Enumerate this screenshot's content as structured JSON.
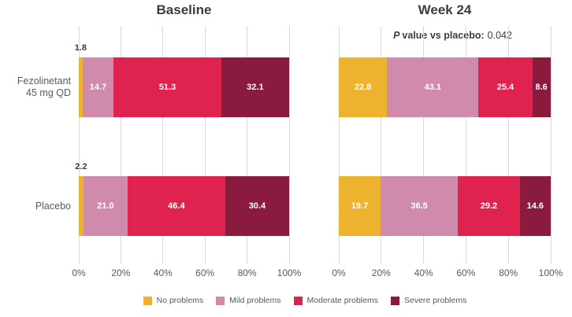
{
  "chart_data": {
    "type": "bar",
    "orientation": "horizontal",
    "stacked": true,
    "unit": "%",
    "xlim": [
      0,
      100
    ],
    "x_ticks": [
      "0%",
      "20%",
      "40%",
      "60%",
      "80%",
      "100%"
    ],
    "grid": "vertical-gridlines",
    "legend_position": "bottom",
    "categories": [
      "No problems",
      "Mild problems",
      "Moderate problems",
      "Severe problems"
    ],
    "colors": [
      "#EDB32E",
      "#CF8AAC",
      "#E0224E",
      "#8A1B3E"
    ],
    "gridline_color": "#d9d9d9",
    "panels": [
      {
        "title": "Baseline",
        "rows": [
          {
            "label_lines": [
              "Fezolinetant",
              "45 mg QD"
            ],
            "values": [
              1.8,
              14.7,
              51.3,
              32.1
            ],
            "labels": [
              "1.8",
              "14.7",
              "51.3",
              "32.1"
            ]
          },
          {
            "label_lines": [
              "Placebo"
            ],
            "values": [
              2.2,
              21.0,
              46.4,
              30.4
            ],
            "labels": [
              "2.2",
              "21.0",
              "46.4",
              "30.4"
            ]
          }
        ]
      },
      {
        "title": "Week 24",
        "annotation": {
          "p": "P",
          "text": "value vs placebo:",
          "value": "0.042"
        },
        "rows": [
          {
            "label_lines": [],
            "values": [
              22.8,
              43.1,
              25.4,
              8.6
            ],
            "labels": [
              "22.8",
              "43.1",
              "25.4",
              "8.6"
            ]
          },
          {
            "label_lines": [],
            "values": [
              19.7,
              36.5,
              29.2,
              14.6
            ],
            "labels": [
              "19.7",
              "36.5",
              "29.2",
              "14.6"
            ]
          }
        ]
      }
    ]
  }
}
